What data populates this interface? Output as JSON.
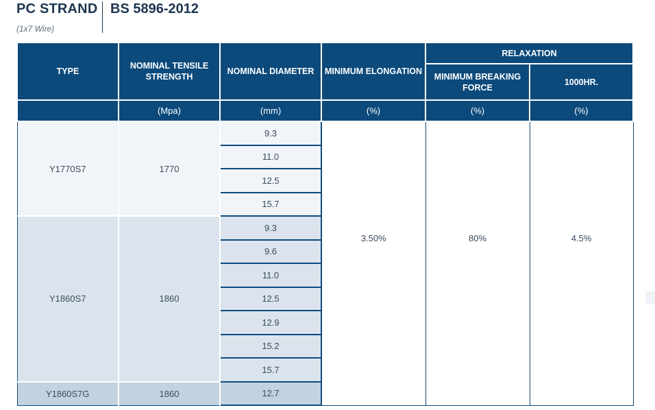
{
  "title": {
    "product": "PC STRAND",
    "subtitle": "(1x7 Wire)",
    "standard": "BS 5896-2012"
  },
  "table": {
    "headers": {
      "type": "TYPE",
      "tensile": "NOMINAL TENSILE STRENGTH",
      "diameter": "NOMINAL DIAMETER",
      "elongation": "MINIMUM ELONGATION",
      "relaxation": "RELAXATION",
      "breaking": "MINIMUM BREAKING FORCE",
      "hours": "1000HR."
    },
    "units": {
      "tensile": "(Mpa)",
      "diameter": "(mm)",
      "elongation": "(%)",
      "breaking": "(%)",
      "hours": "(%)"
    },
    "groups": [
      {
        "type": "Y1770S7",
        "strength": "1770",
        "diameters": [
          "9.3",
          "11.0",
          "12.5",
          "15.7"
        ]
      },
      {
        "type": "Y1860S7",
        "strength": "1860",
        "diameters": [
          "9.3",
          "9.6",
          "11.0",
          "12.5",
          "12.9",
          "15.2",
          "15.7"
        ]
      },
      {
        "type": "Y1860S7G",
        "strength": "1860",
        "diameters": [
          "12.7"
        ]
      }
    ],
    "common": {
      "elongation": "3.50%",
      "breaking": "80%",
      "hours": "4.5%"
    }
  }
}
